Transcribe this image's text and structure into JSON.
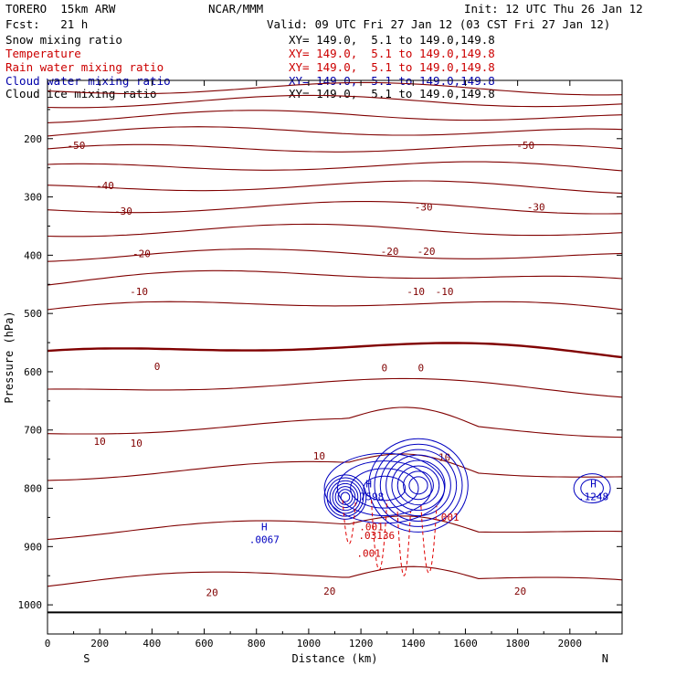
{
  "header": {
    "model": "TORERO  15km ARW",
    "center": "NCAR/MMM",
    "init": "Init: 12 UTC Thu 26 Jan 12",
    "fcst": "Fcst:   21 h",
    "valid": "Valid: 09 UTC Fri 27 Jan 12 (03 CST Fri 27 Jan 12)"
  },
  "fields": [
    {
      "name": "Snow mixing ratio",
      "color": "#000000",
      "xy": "XY= 149.0,  5.1 to 149.0,149.8"
    },
    {
      "name": "Temperature",
      "color": "#cc0000",
      "xy": "XY= 149.0,  5.1 to 149.0,149.8"
    },
    {
      "name": "Rain water mixing ratio",
      "color": "#cc0000",
      "xy": "XY= 149.0,  5.1 to 149.0,149.8"
    },
    {
      "name": "Cloud water mixing ratio",
      "color": "#0000aa",
      "xy": "XY= 149.0,  5.1 to 149.0,149.8"
    },
    {
      "name": "Cloud ice mixing ratio",
      "color": "#000000",
      "xy": "XY= 149.0,  5.1 to 149.0,149.8"
    }
  ],
  "chart_data": {
    "type": "contour",
    "xlabel": "Distance (km)",
    "ylabel": "Pressure (hPa)",
    "x_ticks": [
      0,
      200,
      400,
      600,
      800,
      1000,
      1200,
      1400,
      1600,
      1800,
      2000
    ],
    "y_ticks": [
      200,
      300,
      400,
      500,
      600,
      700,
      800,
      900,
      1000
    ],
    "xlim": [
      0,
      2200
    ],
    "ylim": [
      1050,
      100
    ],
    "y_scale": "linear (hPa)",
    "end_labels": {
      "left": "S",
      "right": "N"
    },
    "temperature_contours": {
      "color": "#800000",
      "levels_C": [
        -60,
        -55,
        -50,
        -45,
        -40,
        -35,
        -30,
        -25,
        -20,
        -15,
        -10,
        -5,
        0,
        5,
        10,
        15,
        20,
        25
      ],
      "labels": [
        {
          "text": "-50",
          "x": 110,
          "p": 211
        },
        {
          "text": "-50",
          "x": 1830,
          "p": 211
        },
        {
          "text": "-40",
          "x": 220,
          "p": 280
        },
        {
          "text": "-30",
          "x": 290,
          "p": 324
        },
        {
          "text": "-30",
          "x": 1440,
          "p": 317
        },
        {
          "text": "-30",
          "x": 1870,
          "p": 317
        },
        {
          "text": "-20",
          "x": 360,
          "p": 397
        },
        {
          "text": "-20",
          "x": 1310,
          "p": 393
        },
        {
          "text": "-20",
          "x": 1450,
          "p": 393
        },
        {
          "text": "-10",
          "x": 350,
          "p": 462
        },
        {
          "text": "-10",
          "x": 1410,
          "p": 462
        },
        {
          "text": "-10",
          "x": 1520,
          "p": 462
        },
        {
          "text": "0",
          "x": 420,
          "p": 591
        },
        {
          "text": "0",
          "x": 1290,
          "p": 593
        },
        {
          "text": "0",
          "x": 1430,
          "p": 593
        },
        {
          "text": "10",
          "x": 200,
          "p": 719
        },
        {
          "text": "10",
          "x": 340,
          "p": 722
        },
        {
          "text": "10",
          "x": 1040,
          "p": 744
        },
        {
          "text": "10",
          "x": 1520,
          "p": 747
        },
        {
          "text": "20",
          "x": 630,
          "p": 979
        },
        {
          "text": "20",
          "x": 1080,
          "p": 976
        },
        {
          "text": "20",
          "x": 1810,
          "p": 976
        }
      ]
    },
    "cloud_water_maxima": [
      {
        "label": "H",
        "value": ".0067",
        "x": 830,
        "p": 885
      },
      {
        "label": "H",
        "value": ".7598",
        "x": 1230,
        "p": 811
      },
      {
        "label": "H",
        "value": ".1248",
        "x": 2090,
        "p": 811
      }
    ],
    "rain_water_labels": [
      {
        "text": ".001",
        "x": 1240,
        "p": 866
      },
      {
        "text": ".03136",
        "x": 1260,
        "p": 881
      },
      {
        "text": ".001",
        "x": 1230,
        "p": 911
      },
      {
        "text": ".001",
        "x": 1530,
        "p": 849
      }
    ],
    "surface_pressure_hPa": 1013
  }
}
